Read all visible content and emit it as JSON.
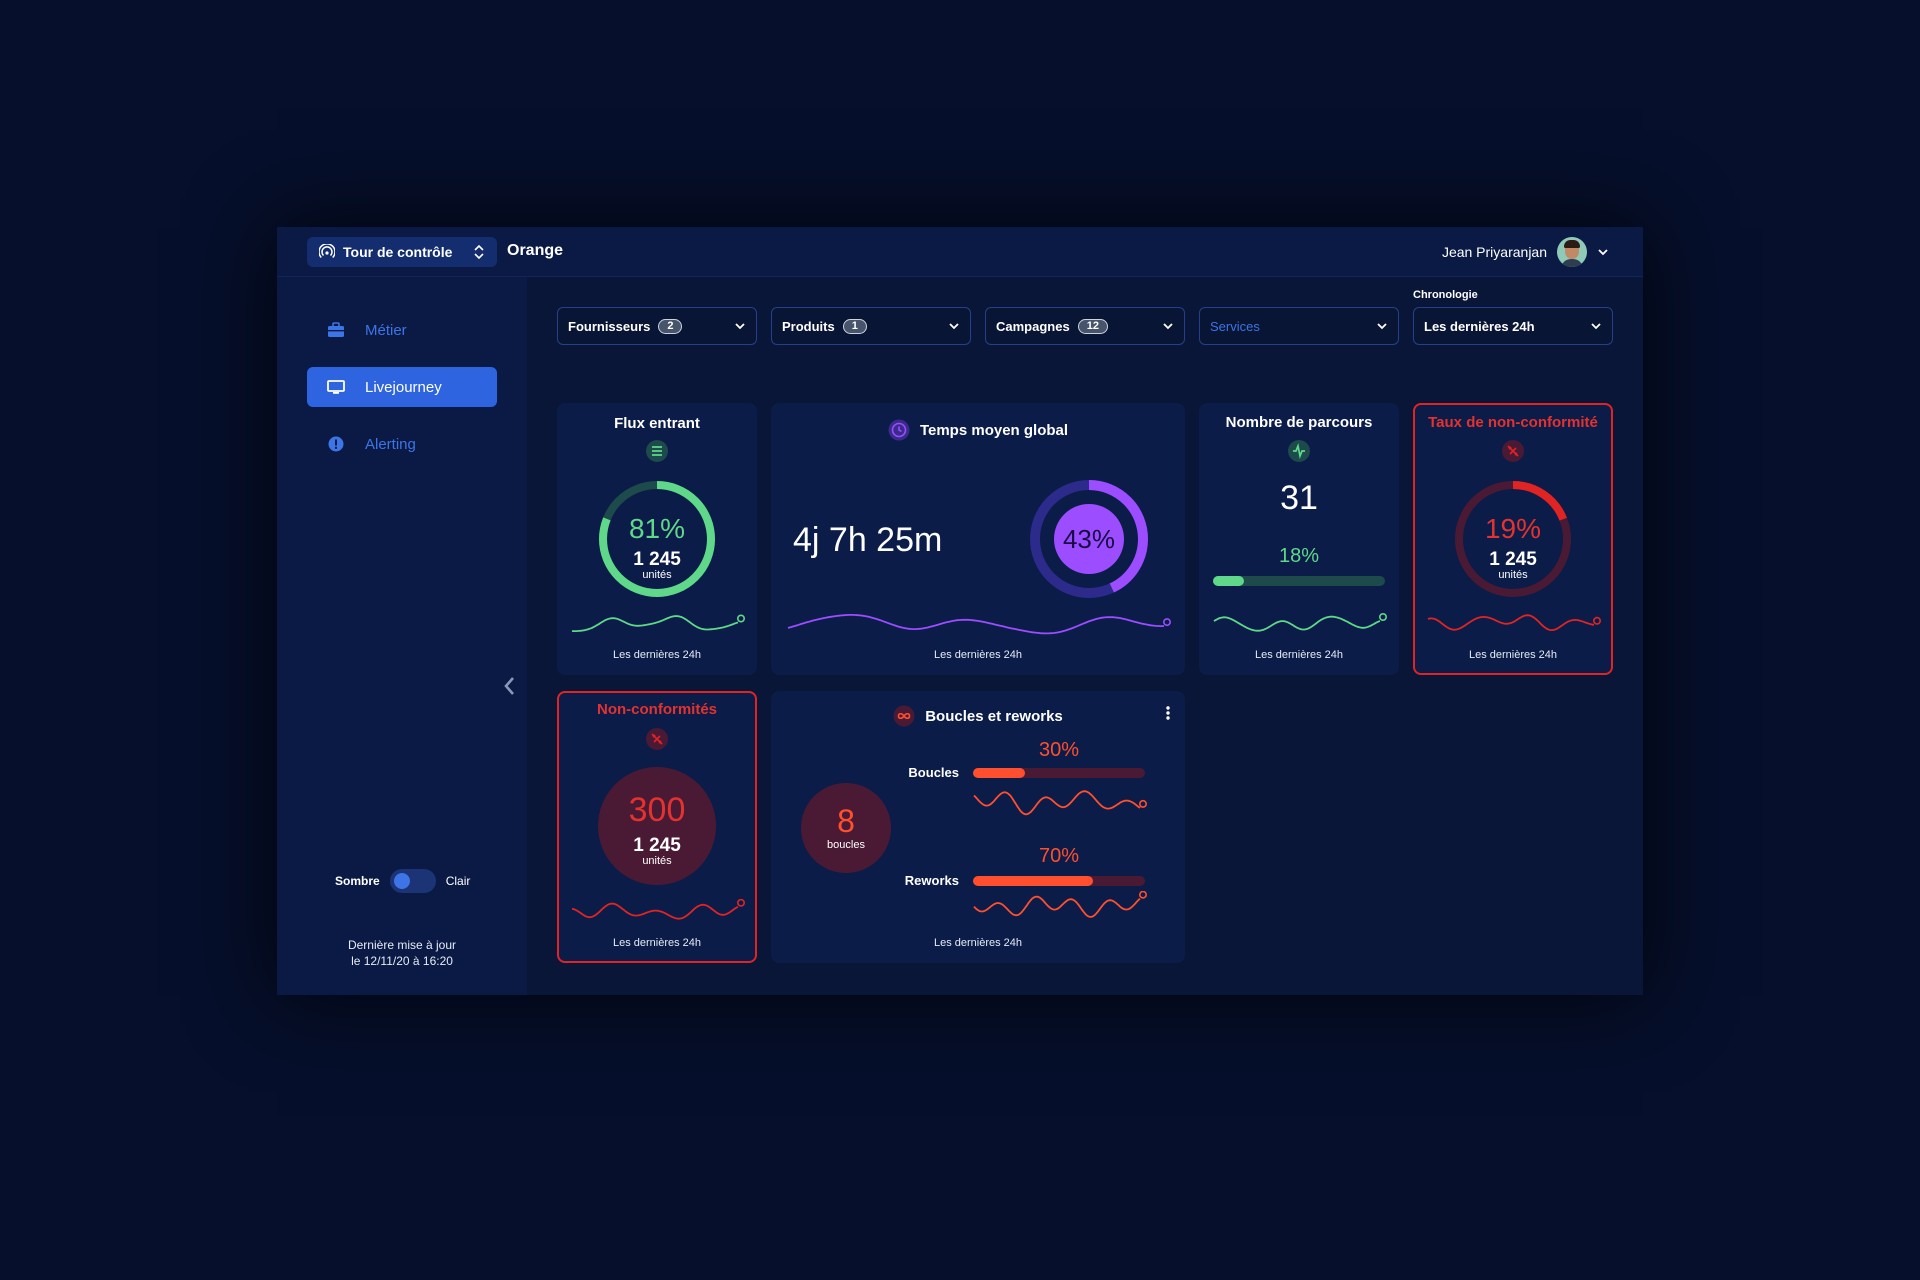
{
  "topbar": {
    "app_name": "Tour de contrôle",
    "org": "Orange",
    "user_name": "Jean Priyaranjan"
  },
  "sidebar": {
    "items": [
      {
        "label": "Métier",
        "icon": "briefcase-icon"
      },
      {
        "label": "Livejourney",
        "icon": "monitor-icon"
      },
      {
        "label": "Alerting",
        "icon": "alert-icon"
      }
    ],
    "theme_dark": "Sombre",
    "theme_light": "Clair",
    "update_line1": "Dernière mise à jour",
    "update_line2": "le 12/11/20 à 16:20"
  },
  "filters": [
    {
      "label": "Fournisseurs",
      "count": "2"
    },
    {
      "label": "Produits",
      "count": "1"
    },
    {
      "label": "Campagnes",
      "count": "12"
    },
    {
      "label": "Services",
      "count": ""
    },
    {
      "label": "Les dernières 24h",
      "count": ""
    }
  ],
  "chronologie_label": "Chronologie",
  "cards": {
    "flux": {
      "title": "Flux entrant",
      "percent": "81%",
      "value": "1 245",
      "unit": "unités",
      "ratio": 0.81,
      "footer": "Les dernières 24h"
    },
    "temps": {
      "title": "Temps moyen global",
      "value": "4j 7h 25m",
      "percent": "43%",
      "ratio": 0.43,
      "footer": "Les dernières 24h"
    },
    "parcours": {
      "title": "Nombre de parcours",
      "value": "31",
      "percent": "18%",
      "ratio": 0.18,
      "footer": "Les dernières 24h"
    },
    "taux": {
      "title": "Taux de non-conformité",
      "percent": "19%",
      "value": "1 245",
      "unit": "unités",
      "ratio": 0.19,
      "footer": "Les dernières 24h"
    },
    "nonconf": {
      "title": "Non-conformités",
      "value": "300",
      "sub": "1 245",
      "unit": "unités",
      "footer": "Les dernières 24h"
    },
    "boucles": {
      "title": "Boucles et reworks",
      "count": "8",
      "count_unit": "boucles",
      "boucles_label": "Boucles",
      "boucles_percent": "30%",
      "boucles_ratio": 0.3,
      "reworks_label": "Reworks",
      "reworks_percent": "70%",
      "reworks_ratio": 0.7,
      "footer": "Les dernières 24h"
    }
  },
  "colors": {
    "green": "#5fd88a",
    "purple": "#9b4dff",
    "red": "#e02424",
    "orange": "#ff4f2e",
    "blue": "#2f64e0"
  }
}
